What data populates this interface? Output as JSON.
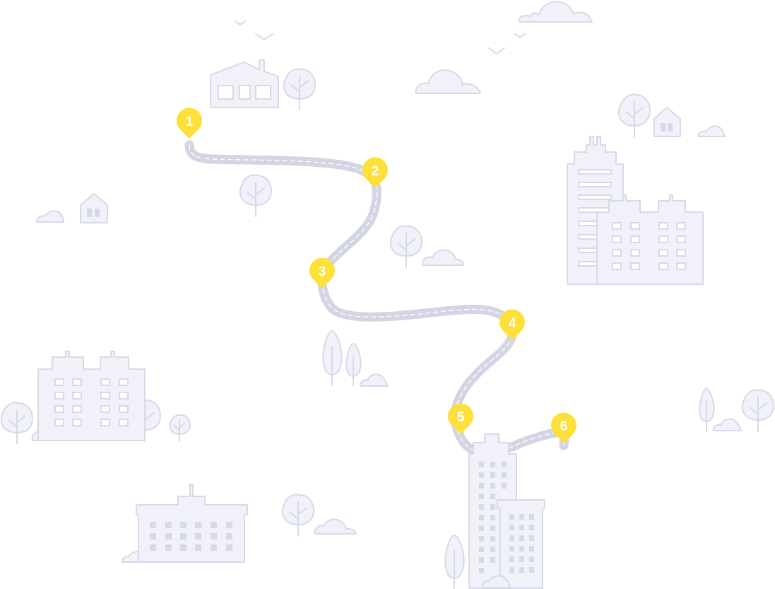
{
  "route": {
    "pins": [
      {
        "label": "1"
      },
      {
        "label": "2"
      },
      {
        "label": "3"
      },
      {
        "label": "4"
      },
      {
        "label": "5"
      },
      {
        "label": "6"
      }
    ]
  },
  "colors": {
    "pin": "#fde03a",
    "road": "#d3d5e3",
    "outline": "#d7d9e8",
    "fill": "#f0f1f9"
  }
}
